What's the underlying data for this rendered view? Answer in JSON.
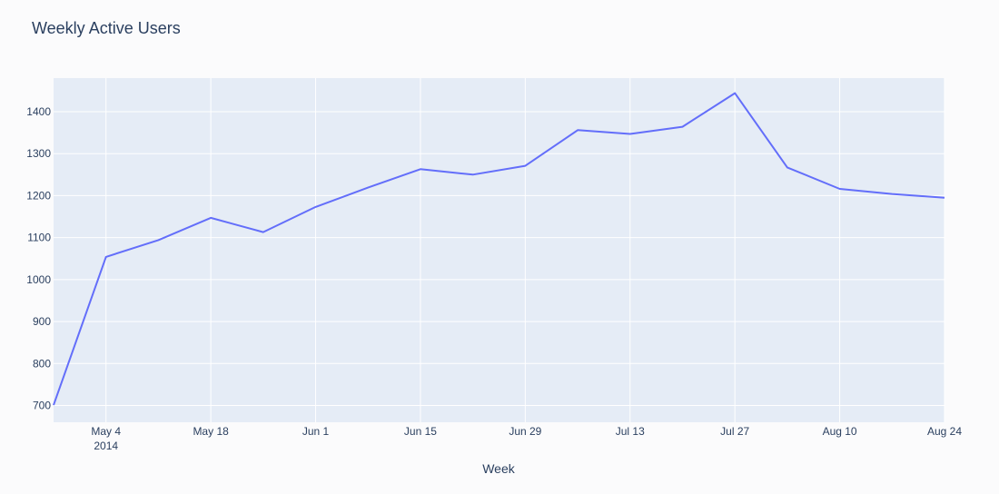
{
  "chart_data": {
    "type": "line",
    "title": "Weekly Active Users",
    "xlabel": "Week",
    "ylabel": "",
    "x": [
      "2014-04-27",
      "2014-05-04",
      "2014-05-11",
      "2014-05-18",
      "2014-05-25",
      "2014-06-01",
      "2014-06-08",
      "2014-06-15",
      "2014-06-22",
      "2014-06-29",
      "2014-07-06",
      "2014-07-13",
      "2014-07-20",
      "2014-07-27",
      "2014-08-03",
      "2014-08-10",
      "2014-08-17",
      "2014-08-24"
    ],
    "series": [
      {
        "values": [
          701,
          1054,
          1094,
          1147,
          1113,
          1173,
          1219,
          1263,
          1250,
          1271,
          1356,
          1347,
          1364,
          1444,
          1267,
          1216,
          1204,
          1195
        ]
      }
    ],
    "xlim": [
      "2014-04-27",
      "2014-08-24"
    ],
    "ylim": [
      660,
      1480
    ],
    "y_ticks": [
      700,
      800,
      900,
      1000,
      1100,
      1200,
      1300,
      1400
    ],
    "x_ticks": [
      {
        "date": "2014-05-04",
        "label": "May 4",
        "sublabel": "2014"
      },
      {
        "date": "2014-05-18",
        "label": "May 18"
      },
      {
        "date": "2014-06-01",
        "label": "Jun 1"
      },
      {
        "date": "2014-06-15",
        "label": "Jun 15"
      },
      {
        "date": "2014-06-29",
        "label": "Jun 29"
      },
      {
        "date": "2014-07-13",
        "label": "Jul 13"
      },
      {
        "date": "2014-07-27",
        "label": "Jul 27"
      },
      {
        "date": "2014-08-10",
        "label": "Aug 10"
      },
      {
        "date": "2014-08-24",
        "label": "Aug 24"
      }
    ],
    "grid": true,
    "colors": {
      "line": "#636efa",
      "plot_bg": "#e5ecf6",
      "grid": "#ffffff",
      "text": "#2a3f5f"
    }
  }
}
